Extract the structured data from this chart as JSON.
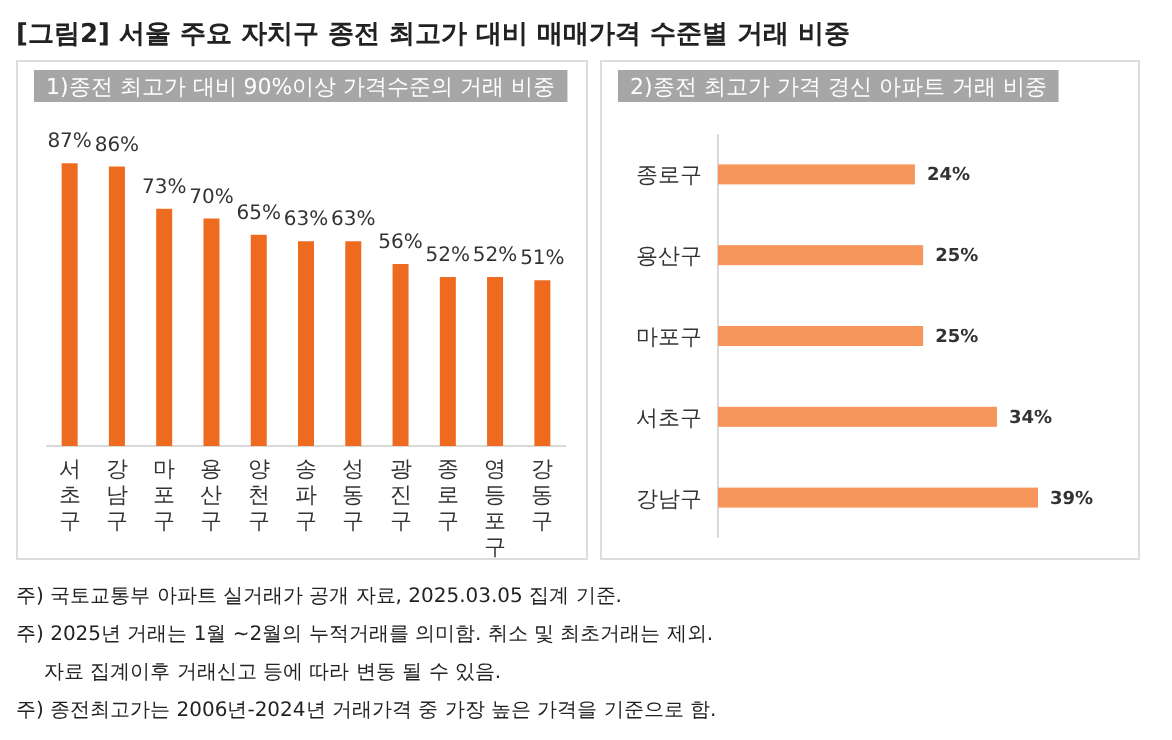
{
  "chart_data": [
    {
      "type": "bar",
      "title": "[그림2] 서울 주요 자치구  종전 최고가 대비 매매가격 수준별 거래 비중",
      "subtitle": "1)종전 최고가 대비 90%이상 가격수준의 거래 비중",
      "categories": [
        "서초구",
        "강남구",
        "마포구",
        "용산구",
        "양천구",
        "송파구",
        "성동구",
        "광진구",
        "종로구",
        "영등포구",
        "강동구"
      ],
      "values": [
        87,
        86,
        73,
        70,
        65,
        63,
        63,
        56,
        52,
        52,
        51
      ],
      "value_labels": [
        "87%",
        "86%",
        "73%",
        "70%",
        "65%",
        "63%",
        "63%",
        "56%",
        "52%",
        "52%",
        "51%"
      ],
      "color": "#ee6a1f",
      "annotations": [
        "주) 국토교통부 아파트 실거래가 공개 자료, 2025.03.05 집계 기준.",
        "주) 2025년 거래는 1월 ~2월의 누적거래를 의미함. 취소 및 최초거래는 제외.",
        "자료 집계이후 거래신고 등에 따라 변동 될 수 있음.",
        "주) 종전최고가는 2006년-2024년 거래가격 중 가장 높은 가격을 기준으로 함."
      ]
    },
    {
      "type": "bar",
      "orientation": "horizontal",
      "subtitle": "2)종전 최고가 가격 경신 아파트 거래 비중",
      "categories": [
        "종로구",
        "용산구",
        "마포구",
        "서초구",
        "강남구"
      ],
      "values": [
        24,
        25,
        25,
        34,
        39
      ],
      "value_labels": [
        "24%",
        "25%",
        "25%",
        "34%",
        "39%"
      ],
      "color": "#f7965a"
    }
  ]
}
